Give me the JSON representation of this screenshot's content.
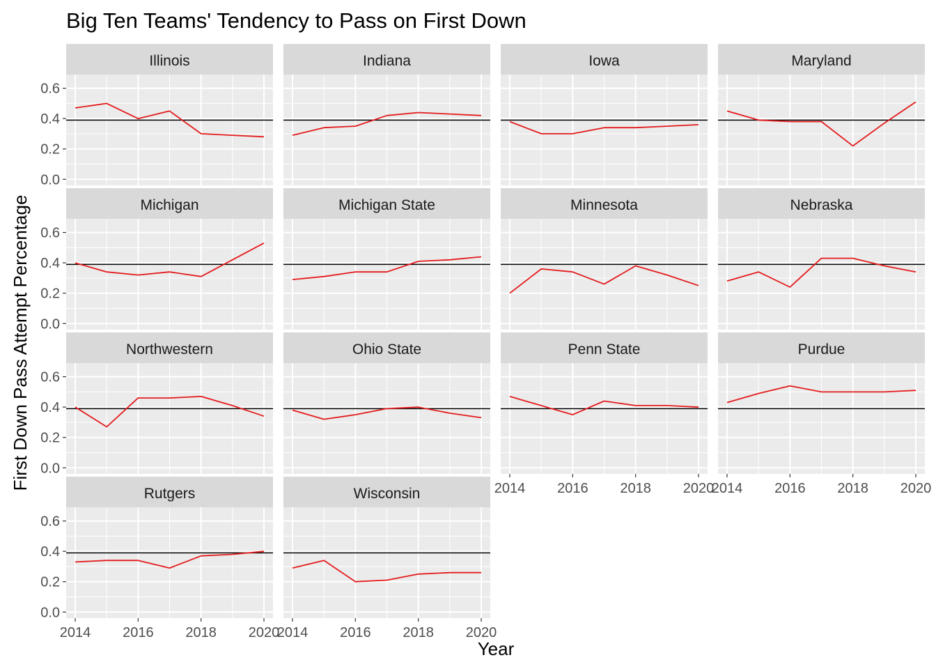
{
  "chart_data": {
    "type": "line",
    "title": "Big Ten Teams' Tendency to Pass on First Down",
    "xlabel": "Year",
    "ylabel": "First Down Pass Attempt Percentage",
    "x": [
      2014,
      2015,
      2016,
      2017,
      2018,
      2019,
      2020
    ],
    "x_ticks": [
      2014,
      2016,
      2018,
      2020
    ],
    "xlim": [
      2014,
      2020
    ],
    "y_ticks": [
      0.0,
      0.2,
      0.4,
      0.6
    ],
    "y_tick_labels": [
      "0.0",
      "0.2",
      "0.4",
      "0.6"
    ],
    "ylim": [
      0.0,
      0.6
    ],
    "reference_line": 0.39,
    "line_color": "#e41a1c",
    "reference_color": "#000000",
    "grid": true,
    "panel_background": "#ebebeb",
    "strip_background": "#d9d9d9",
    "facets": [
      {
        "name": "Illinois",
        "values": [
          0.47,
          0.5,
          0.4,
          0.45,
          0.3,
          0.29,
          0.28
        ]
      },
      {
        "name": "Indiana",
        "values": [
          0.29,
          0.34,
          0.35,
          0.42,
          0.44,
          0.43,
          0.42
        ]
      },
      {
        "name": "Iowa",
        "values": [
          0.38,
          0.3,
          0.3,
          0.34,
          0.34,
          0.35,
          0.36
        ]
      },
      {
        "name": "Maryland",
        "values": [
          0.45,
          0.39,
          0.38,
          0.38,
          0.22,
          0.37,
          0.51
        ]
      },
      {
        "name": "Michigan",
        "values": [
          0.4,
          0.34,
          0.32,
          0.34,
          0.31,
          0.42,
          0.53
        ]
      },
      {
        "name": "Michigan State",
        "values": [
          0.29,
          0.31,
          0.34,
          0.34,
          0.41,
          0.42,
          0.44
        ]
      },
      {
        "name": "Minnesota",
        "values": [
          0.2,
          0.36,
          0.34,
          0.26,
          0.38,
          0.32,
          0.25
        ]
      },
      {
        "name": "Nebraska",
        "values": [
          0.28,
          0.34,
          0.24,
          0.43,
          0.43,
          0.38,
          0.34
        ]
      },
      {
        "name": "Northwestern",
        "values": [
          0.4,
          0.27,
          0.46,
          0.46,
          0.47,
          0.41,
          0.34
        ]
      },
      {
        "name": "Ohio State",
        "values": [
          0.38,
          0.32,
          0.35,
          0.39,
          0.4,
          0.36,
          0.33
        ]
      },
      {
        "name": "Penn State",
        "values": [
          0.47,
          0.41,
          0.35,
          0.44,
          0.41,
          0.41,
          0.4
        ]
      },
      {
        "name": "Purdue",
        "values": [
          0.43,
          0.49,
          0.54,
          0.5,
          0.5,
          0.5,
          0.51
        ]
      },
      {
        "name": "Rutgers",
        "values": [
          0.33,
          0.34,
          0.34,
          0.29,
          0.37,
          0.38,
          0.4
        ]
      },
      {
        "name": "Wisconsin",
        "values": [
          0.29,
          0.34,
          0.2,
          0.21,
          0.25,
          0.26,
          0.26
        ]
      }
    ]
  }
}
